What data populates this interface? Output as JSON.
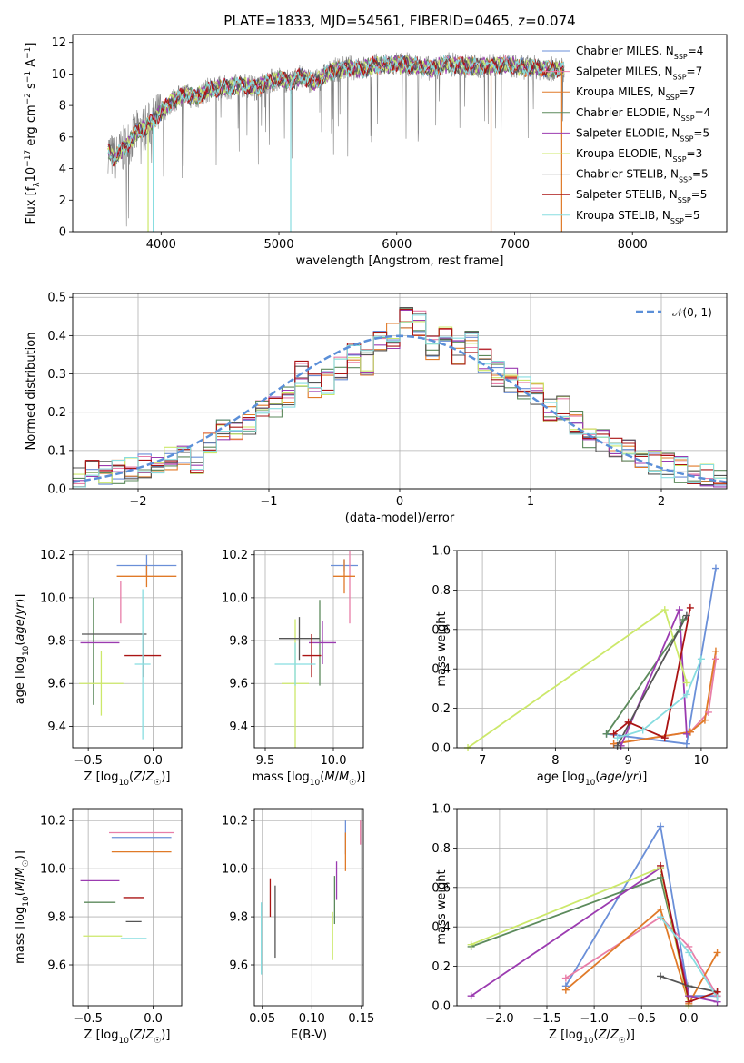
{
  "colors": {
    "Chabrier MILES": "#6a8fd8",
    "Salpeter MILES": "#e87ea8",
    "Kroupa MILES": "#e07a28",
    "Chabrier ELODIE": "#5c8a5c",
    "Salpeter ELODIE": "#9b3bb0",
    "Kroupa ELODIE": "#cce86a",
    "Chabrier STELIB": "#555555",
    "Salpeter STELIB": "#aa1414",
    "Kroupa STELIB": "#88dde0",
    "data": "#808080",
    "gauss": "#5b8fd8",
    "grid": "#b0b0b0"
  },
  "chart_data": [
    {
      "id": "spectrum",
      "type": "line",
      "title": "PLATE=1833, MJD=54561, FIBERID=0465, z=0.074",
      "xlabel": "wavelength [Angstrom, rest frame]",
      "ylabel": "Flux [f_λ10^-17 erg cm^-2 s^-1 A^-1]",
      "xlim": [
        3250,
        8800
      ],
      "ylim": [
        0,
        12.5
      ],
      "xticks": [
        4000,
        5000,
        6000,
        7000,
        8000
      ],
      "yticks": [
        0,
        2,
        4,
        6,
        8,
        10,
        12
      ],
      "grid": false,
      "legend_position": "right",
      "legend": [
        {
          "model": "Chabrier MILES",
          "n": 4
        },
        {
          "model": "Salpeter MILES",
          "n": 7
        },
        {
          "model": "Kroupa MILES",
          "n": 7
        },
        {
          "model": "Chabrier ELODIE",
          "n": 4
        },
        {
          "model": "Salpeter ELODIE",
          "n": 5
        },
        {
          "model": "Kroupa ELODIE",
          "n": 3
        },
        {
          "model": "Chabrier STELIB",
          "n": 5
        },
        {
          "model": "Salpeter STELIB",
          "n": 5
        },
        {
          "model": "Kroupa STELIB",
          "n": 5
        }
      ],
      "continuum": {
        "x": [
          3550,
          3600,
          3700,
          3800,
          3900,
          4000,
          4100,
          4200,
          4300,
          4400,
          4500,
          4600,
          4700,
          4800,
          4900,
          5000,
          5100,
          5200,
          5300,
          5400,
          5500,
          5600,
          5700,
          5800,
          5900,
          6000,
          6100,
          6200,
          6300,
          6400,
          6500,
          6600,
          6700,
          6800,
          6900,
          7000,
          7100,
          7200,
          7300,
          7400
        ],
        "y": [
          5.2,
          4.6,
          5.4,
          6.3,
          6.8,
          7.6,
          8.3,
          8.7,
          8.5,
          9.0,
          9.1,
          9.2,
          9.3,
          9.1,
          9.5,
          9.7,
          9.5,
          9.9,
          9.4,
          10.0,
          10.3,
          10.4,
          10.3,
          10.5,
          10.6,
          10.6,
          10.6,
          10.5,
          10.3,
          10.6,
          10.6,
          10.5,
          10.5,
          10.5,
          10.6,
          10.5,
          10.4,
          10.4,
          10.3,
          10.3
        ]
      },
      "absorption_spikes": [
        3890,
        3933,
        5100,
        6800,
        7400
      ]
    },
    {
      "id": "residuals",
      "type": "line",
      "xlabel": "(data-model)/error",
      "ylabel": "Normed distribution",
      "xlim": [
        -2.5,
        2.5
      ],
      "ylim": [
        0,
        0.51
      ],
      "xticks": [
        -2,
        -1,
        0,
        1,
        2
      ],
      "yticks": [
        0.0,
        0.1,
        0.2,
        0.3,
        0.4,
        0.5
      ],
      "grid": true,
      "legend_position": "top-right",
      "gaussian_label": "𝒩(0, 1)",
      "bins": 50,
      "envelope": [
        0.02,
        0.04,
        0.045,
        0.04,
        0.05,
        0.06,
        0.07,
        0.08,
        0.09,
        0.06,
        0.12,
        0.15,
        0.14,
        0.17,
        0.2,
        0.21,
        0.24,
        0.3,
        0.27,
        0.28,
        0.31,
        0.35,
        0.33,
        0.38,
        0.4,
        0.44,
        0.43,
        0.37,
        0.39,
        0.36,
        0.38,
        0.33,
        0.3,
        0.28,
        0.27,
        0.25,
        0.2,
        0.21,
        0.17,
        0.14,
        0.13,
        0.11,
        0.1,
        0.08,
        0.07,
        0.06,
        0.05,
        0.04,
        0.03,
        0.02
      ]
    },
    {
      "id": "age_vs_Z",
      "type": "scatter",
      "xlabel": "Z [log10(Z/Z☉)]",
      "ylabel": "age [log10(age/yr)]",
      "xlim": [
        -0.62,
        0.22
      ],
      "ylim": [
        9.3,
        10.22
      ],
      "xticks": [
        -0.5,
        0.0
      ],
      "yticks": [
        9.4,
        9.6,
        9.8,
        10.0,
        10.2
      ],
      "grid": true,
      "errorbars": [
        {
          "model": "Chabrier MILES",
          "x": -0.05,
          "y": 10.15,
          "xerr": 0.23,
          "yerr": 0.05
        },
        {
          "model": "Salpeter MILES",
          "x": -0.25,
          "y": 9.98,
          "xerr": 0.0,
          "yerr": 0.1
        },
        {
          "model": "Kroupa MILES",
          "x": -0.05,
          "y": 10.1,
          "xerr": 0.23,
          "yerr": 0.05
        },
        {
          "model": "Chabrier ELODIE",
          "x": -0.46,
          "y": 9.75,
          "xerr": 0.0,
          "yerr": 0.25
        },
        {
          "model": "Salpeter ELODIE",
          "x": -0.41,
          "y": 9.79,
          "xerr": 0.15,
          "yerr": 0.0
        },
        {
          "model": "Kroupa ELODIE",
          "x": -0.4,
          "y": 9.6,
          "xerr": 0.17,
          "yerr": 0.15
        },
        {
          "model": "Chabrier STELIB",
          "x": -0.3,
          "y": 9.83,
          "xerr": 0.25,
          "yerr": 0.0
        },
        {
          "model": "Salpeter STELIB",
          "x": -0.08,
          "y": 9.73,
          "xerr": 0.14,
          "yerr": 0.1
        },
        {
          "model": "Kroupa STELIB",
          "x": -0.08,
          "y": 9.69,
          "xerr": 0.06,
          "yerr": 0.35
        }
      ]
    },
    {
      "id": "age_vs_mass",
      "type": "scatter",
      "xlabel": "mass [log10(M/M☉)]",
      "xlim": [
        9.42,
        10.22
      ],
      "ylim": [
        9.3,
        10.22
      ],
      "xticks": [
        9.5,
        10.0
      ],
      "yticks": [
        9.4,
        9.6,
        9.8,
        10.0,
        10.2
      ],
      "grid": true,
      "errorbars": [
        {
          "model": "Chabrier MILES",
          "x": 10.08,
          "y": 10.15,
          "xerr": 0.1,
          "yerr": 0.03
        },
        {
          "model": "Salpeter MILES",
          "x": 10.12,
          "y": 10.1,
          "xerr": 0.0,
          "yerr": 0.22
        },
        {
          "model": "Kroupa MILES",
          "x": 10.08,
          "y": 10.1,
          "xerr": 0.08,
          "yerr": 0.08
        },
        {
          "model": "Chabrier ELODIE",
          "x": 9.9,
          "y": 9.79,
          "xerr": 0.0,
          "yerr": 0.2
        },
        {
          "model": "Salpeter ELODIE",
          "x": 9.92,
          "y": 9.79,
          "xerr": 0.1,
          "yerr": 0.1
        },
        {
          "model": "Kroupa ELODIE",
          "x": 9.72,
          "y": 9.6,
          "xerr": 0.1,
          "yerr": 0.3
        },
        {
          "model": "Chabrier STELIB",
          "x": 9.75,
          "y": 9.81,
          "xerr": 0.15,
          "yerr": 0.1
        },
        {
          "model": "Salpeter STELIB",
          "x": 9.84,
          "y": 9.73,
          "xerr": 0.07,
          "yerr": 0.1
        },
        {
          "model": "Kroupa STELIB",
          "x": 9.72,
          "y": 9.69,
          "xerr": 0.15,
          "yerr": 0.1
        }
      ]
    },
    {
      "id": "weight_vs_age",
      "type": "line",
      "xlabel": "age [log10(age/yr)]",
      "ylabel": "mass weight",
      "xlim": [
        6.65,
        10.35
      ],
      "ylim": [
        0,
        1
      ],
      "xticks": [
        7,
        8,
        9,
        10
      ],
      "yticks": [
        0.0,
        0.2,
        0.4,
        0.6,
        0.8,
        1.0
      ],
      "grid": true,
      "series": [
        {
          "model": "Chabrier MILES",
          "x": [
            8.7,
            9.8,
            10.2
          ],
          "y": [
            0.07,
            0.02,
            0.91
          ]
        },
        {
          "model": "Salpeter MILES",
          "x": [
            8.8,
            9.85,
            10.1,
            10.2
          ],
          "y": [
            0.02,
            0.08,
            0.18,
            0.45
          ]
        },
        {
          "model": "Kroupa MILES",
          "x": [
            8.8,
            9.85,
            10.05,
            10.2
          ],
          "y": [
            0.02,
            0.08,
            0.14,
            0.49
          ]
        },
        {
          "model": "Chabrier ELODIE",
          "x": [
            8.7,
            9.7,
            9.75
          ],
          "y": [
            0.07,
            0.6,
            0.65
          ]
        },
        {
          "model": "Salpeter ELODIE",
          "x": [
            8.9,
            9.7,
            9.8
          ],
          "y": [
            0.01,
            0.7,
            0.07
          ]
        },
        {
          "model": "Kroupa ELODIE",
          "x": [
            6.8,
            9.5,
            9.8
          ],
          "y": [
            0.0,
            0.7,
            0.33
          ]
        },
        {
          "model": "Chabrier STELIB",
          "x": [
            8.85,
            9.8
          ],
          "y": [
            0.01,
            0.67
          ]
        },
        {
          "model": "Salpeter STELIB",
          "x": [
            8.8,
            9.0,
            9.5,
            9.85
          ],
          "y": [
            0.07,
            0.13,
            0.05,
            0.71
          ]
        },
        {
          "model": "Kroupa STELIB",
          "x": [
            8.85,
            9.2,
            9.8,
            10.0
          ],
          "y": [
            0.05,
            0.09,
            0.27,
            0.45
          ]
        }
      ]
    },
    {
      "id": "mass_vs_Z",
      "type": "scatter",
      "xlabel": "Z [log10(Z/Z☉)]",
      "ylabel": "mass [log10(M/M☉)]",
      "xlim": [
        -0.62,
        0.22
      ],
      "ylim": [
        9.43,
        10.25
      ],
      "xticks": [
        -0.5,
        0.0
      ],
      "yticks": [
        9.6,
        9.8,
        10.0,
        10.2
      ],
      "grid": true,
      "errorbars": [
        {
          "model": "Chabrier MILES",
          "x": -0.09,
          "y": 10.13,
          "xerr": 0.23,
          "yerr": 0.0
        },
        {
          "model": "Salpeter MILES",
          "x": -0.09,
          "y": 10.15,
          "xerr": 0.25,
          "yerr": 0.0
        },
        {
          "model": "Kroupa MILES",
          "x": -0.09,
          "y": 10.07,
          "xerr": 0.23,
          "yerr": 0.0
        },
        {
          "model": "Chabrier ELODIE",
          "x": -0.41,
          "y": 9.86,
          "xerr": 0.12,
          "yerr": 0.0
        },
        {
          "model": "Salpeter ELODIE",
          "x": -0.41,
          "y": 9.95,
          "xerr": 0.15,
          "yerr": 0.0
        },
        {
          "model": "Kroupa ELODIE",
          "x": -0.39,
          "y": 9.72,
          "xerr": 0.15,
          "yerr": 0.0
        },
        {
          "model": "Chabrier STELIB",
          "x": -0.15,
          "y": 9.78,
          "xerr": 0.06,
          "yerr": 0.0
        },
        {
          "model": "Salpeter STELIB",
          "x": -0.15,
          "y": 9.88,
          "xerr": 0.08,
          "yerr": 0.0
        },
        {
          "model": "Kroupa STELIB",
          "x": -0.15,
          "y": 9.71,
          "xerr": 0.1,
          "yerr": 0.0
        }
      ]
    },
    {
      "id": "mass_vs_EBV",
      "type": "scatter",
      "xlabel": "E(B-V)",
      "xlim": [
        0.042,
        0.152
      ],
      "ylim": [
        9.43,
        10.25
      ],
      "xticks": [
        0.05,
        0.1,
        0.15
      ],
      "yticks": [
        9.6,
        9.8,
        10.0,
        10.2
      ],
      "grid": true,
      "errorbars": [
        {
          "model": "Chabrier MILES",
          "x": 0.134,
          "y": 10.13,
          "xerr": 0.0,
          "yerr": 0.07
        },
        {
          "model": "Salpeter MILES",
          "x": 0.149,
          "y": 10.15,
          "xerr": 0.0,
          "yerr": 0.05
        },
        {
          "model": "Kroupa MILES",
          "x": 0.134,
          "y": 10.07,
          "xerr": 0.0,
          "yerr": 0.08
        },
        {
          "model": "Chabrier ELODIE",
          "x": 0.123,
          "y": 9.87,
          "xerr": 0.0,
          "yerr": 0.1
        },
        {
          "model": "Salpeter ELODIE",
          "x": 0.125,
          "y": 9.95,
          "xerr": 0.0,
          "yerr": 0.08
        },
        {
          "model": "Kroupa ELODIE",
          "x": 0.121,
          "y": 9.72,
          "xerr": 0.0,
          "yerr": 0.1
        },
        {
          "model": "Chabrier STELIB",
          "x": 0.063,
          "y": 9.78,
          "xerr": 0.0,
          "yerr": 0.15
        },
        {
          "model": "Salpeter STELIB",
          "x": 0.058,
          "y": 9.88,
          "xerr": 0.0,
          "yerr": 0.08
        },
        {
          "model": "Kroupa STELIB",
          "x": 0.049,
          "y": 9.71,
          "xerr": 0.0,
          "yerr": 0.15
        }
      ]
    },
    {
      "id": "weight_vs_Z",
      "type": "line",
      "xlabel": "Z [log10(Z/Z☉)]",
      "ylabel": "mass weight",
      "xlim": [
        -2.45,
        0.4
      ],
      "ylim": [
        0,
        1
      ],
      "xticks": [
        -2.0,
        -1.5,
        -1.0,
        -0.5,
        0.0
      ],
      "yticks": [
        0.0,
        0.2,
        0.4,
        0.6,
        0.8,
        1.0
      ],
      "grid": true,
      "series": [
        {
          "model": "Chabrier MILES",
          "x": [
            -1.3,
            -0.3,
            0.0,
            0.3
          ],
          "y": [
            0.1,
            0.91,
            0.05,
            0.05
          ]
        },
        {
          "model": "Salpeter MILES",
          "x": [
            -1.3,
            -0.3,
            0.0,
            0.3
          ],
          "y": [
            0.14,
            0.45,
            0.3,
            0.05
          ]
        },
        {
          "model": "Kroupa MILES",
          "x": [
            -1.3,
            -0.3,
            0.0,
            0.3
          ],
          "y": [
            0.08,
            0.49,
            0.01,
            0.27
          ]
        },
        {
          "model": "Chabrier ELODIE",
          "x": [
            -2.3,
            -0.3,
            0.0
          ],
          "y": [
            0.3,
            0.65,
            0.05
          ]
        },
        {
          "model": "Salpeter ELODIE",
          "x": [
            -2.3,
            -0.3,
            0.0,
            0.3
          ],
          "y": [
            0.05,
            0.7,
            0.05,
            0.02
          ]
        },
        {
          "model": "Kroupa ELODIE",
          "x": [
            -2.3,
            -0.3,
            0.0
          ],
          "y": [
            0.31,
            0.7,
            0.0
          ]
        },
        {
          "model": "Chabrier STELIB",
          "x": [
            -0.3,
            0.0,
            0.3
          ],
          "y": [
            0.15,
            0.1,
            0.07
          ]
        },
        {
          "model": "Salpeter STELIB",
          "x": [
            -0.3,
            0.0,
            0.3
          ],
          "y": [
            0.71,
            0.02,
            0.07
          ]
        },
        {
          "model": "Kroupa STELIB",
          "x": [
            -0.3,
            0.0,
            0.3
          ],
          "y": [
            0.45,
            0.27,
            0.04
          ]
        }
      ]
    }
  ]
}
